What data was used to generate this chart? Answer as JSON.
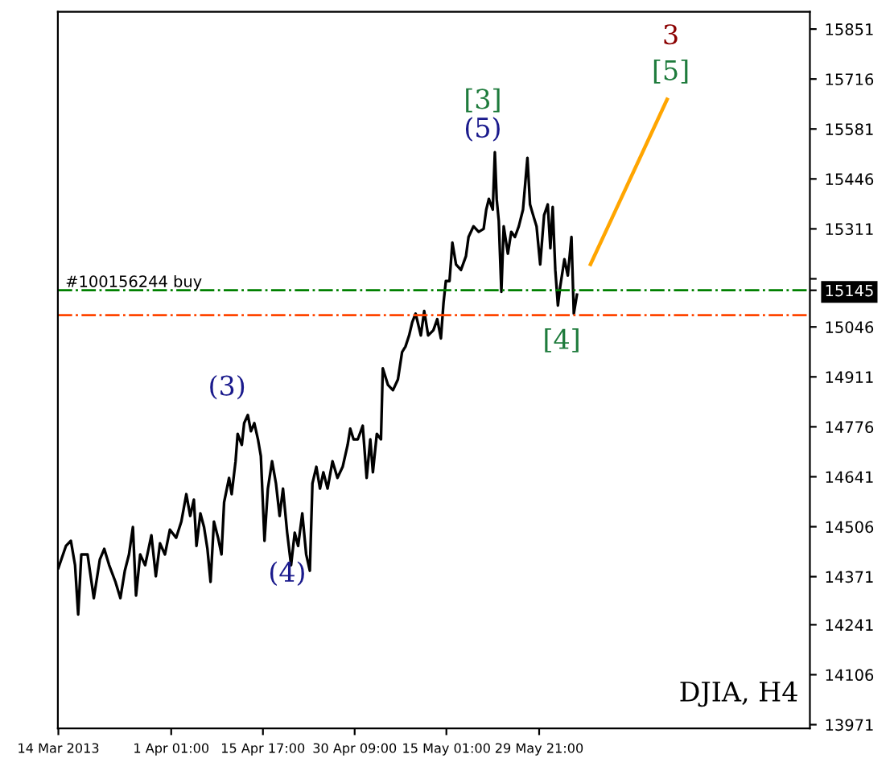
{
  "chart_data": {
    "type": "line",
    "title": "DJIA, H4",
    "xlim": [
      "2013-03-13T22:00",
      "2013-07-12T04:00"
    ],
    "ylim": [
      13961,
      15898
    ],
    "xticks": [
      {
        "value": "2013-03-14T00:00",
        "label": "14 Mar 2013"
      },
      {
        "value": "2013-04-01T01:00",
        "label": "1 Apr 01:00"
      },
      {
        "value": "2013-04-15T17:00",
        "label": "15 Apr 17:00"
      },
      {
        "value": "2013-04-30T09:00",
        "label": "30 Apr 09:00"
      },
      {
        "value": "2013-05-15T01:00",
        "label": "15 May 01:00"
      },
      {
        "value": "2013-05-29T21:00",
        "label": "29 May 21:00"
      }
    ],
    "yticks": [
      13971,
      14106,
      14241,
      14371,
      14506,
      14641,
      14776,
      14911,
      15046,
      15145,
      {
        "value": 15176,
        "label": null
      },
      15311,
      15446,
      15581,
      15716,
      15851
    ],
    "grid": false,
    "legend": false,
    "series": [
      {
        "color": "#000000",
        "x": [
          "2013-03-14T00:00",
          "2013-03-15T05:00",
          "2013-03-16T00:00",
          "2013-03-16T16:00",
          "2013-03-17T04:00",
          "2013-03-17T16:00",
          "2013-03-18T16:00",
          "2013-03-19T16:00",
          "2013-03-20T15:00",
          "2013-03-21T08:00",
          "2013-03-22T03:00",
          "2013-03-23T03:00",
          "2013-03-23T22:00",
          "2013-03-24T15:00",
          "2013-03-25T07:00",
          "2013-03-25T22:00",
          "2013-03-26T10:00",
          "2013-03-27T02:00",
          "2013-03-27T21:00",
          "2013-03-28T21:00",
          "2013-03-29T14:00",
          "2013-03-30T06:00",
          "2013-03-31T01:00",
          "2013-03-31T20:00",
          "2013-04-01T20:00",
          "2013-04-02T16:00",
          "2013-04-03T11:00",
          "2013-04-04T02:00",
          "2013-04-04T16:00",
          "2013-04-05T02:00",
          "2013-04-05T17:00",
          "2013-04-06T07:00",
          "2013-04-06T20:00",
          "2013-04-07T08:00",
          "2013-04-07T21:00",
          "2013-04-08T13:00",
          "2013-04-09T02:00",
          "2013-04-09T12:00",
          "2013-04-10T07:00",
          "2013-04-10T17:00",
          "2013-04-11T08:00",
          "2013-04-11T16:00",
          "2013-04-12T08:00",
          "2013-04-12T17:00",
          "2013-04-13T07:00",
          "2013-04-13T19:00",
          "2013-04-14T08:00",
          "2013-04-14T22:00",
          "2013-04-15T09:00",
          "2013-04-15T23:00",
          "2013-04-16T12:00",
          "2013-04-17T04:00",
          "2013-04-17T19:00",
          "2013-04-18T09:00",
          "2013-04-18T22:00",
          "2013-04-19T14:00",
          "2013-04-20T05:00",
          "2013-04-20T19:00",
          "2013-04-21T08:00",
          "2013-04-22T00:00",
          "2013-04-22T15:00",
          "2013-04-23T05:00",
          "2013-04-23T15:00",
          "2013-04-24T06:00",
          "2013-04-24T20:00",
          "2013-04-25T09:00",
          "2013-04-26T01:00",
          "2013-04-26T20:00",
          "2013-04-27T15:00",
          "2013-04-28T11:00",
          "2013-04-29T06:00",
          "2013-04-29T16:00",
          "2013-04-30T05:00",
          "2013-04-30T21:00",
          "2013-05-01T16:00",
          "2013-05-02T07:00",
          "2013-05-02T21:00",
          "2013-05-03T07:00",
          "2013-05-03T22:00",
          "2013-05-04T14:00",
          "2013-05-04T21:00",
          "2013-05-05T17:00",
          "2013-05-06T12:00",
          "2013-05-07T07:00",
          "2013-05-07T23:00",
          "2013-05-08T12:00",
          "2013-05-09T02:00",
          "2013-05-09T14:00",
          "2013-05-10T03:00",
          "2013-05-10T23:00",
          "2013-05-11T12:00",
          "2013-05-12T03:00",
          "2013-05-12T23:00",
          "2013-05-13T14:00",
          "2013-05-14T04:00",
          "2013-05-14T14:00",
          "2013-05-14T23:00",
          "2013-05-15T13:00",
          "2013-05-16T00:00",
          "2013-05-16T14:00",
          "2013-05-17T09:00",
          "2013-05-18T04:00",
          "2013-05-18T14:00",
          "2013-05-19T09:00",
          "2013-05-20T05:00",
          "2013-05-21T00:00",
          "2013-05-21T10:00",
          "2013-05-21T20:00",
          "2013-05-22T11:00",
          "2013-05-22T19:00",
          "2013-05-23T02:00",
          "2013-05-23T10:00",
          "2013-05-23T20:00",
          "2013-05-24T05:00",
          "2013-05-24T21:00",
          "2013-05-25T10:00",
          "2013-05-26T00:00",
          "2013-05-26T15:00",
          "2013-05-27T07:00",
          "2013-05-28T00:00",
          "2013-05-28T10:00",
          "2013-05-28T22:00",
          "2013-05-29T11:00",
          "2013-05-30T01:00",
          "2013-05-30T16:00",
          "2013-05-31T06:00",
          "2013-05-31T16:00",
          "2013-06-01T01:00",
          "2013-06-01T11:00",
          "2013-06-01T21:00",
          "2013-06-02T06:00",
          "2013-06-02T22:00",
          "2013-06-03T11:00",
          "2013-06-04T01:00",
          "2013-06-04T10:00",
          "2013-06-04T22:00"
        ],
        "values": [
          14394,
          14454,
          14468,
          14402,
          14269,
          14431,
          14431,
          14313,
          14417,
          14446,
          14402,
          14357,
          14313,
          14387,
          14431,
          14505,
          14320,
          14431,
          14402,
          14483,
          14372,
          14461,
          14431,
          14498,
          14476,
          14520,
          14594,
          14535,
          14579,
          14454,
          14542,
          14505,
          14446,
          14357,
          14520,
          14476,
          14431,
          14572,
          14638,
          14594,
          14683,
          14757,
          14727,
          14786,
          14808,
          14764,
          14786,
          14742,
          14697,
          14468,
          14609,
          14683,
          14623,
          14535,
          14609,
          14490,
          14402,
          14490,
          14454,
          14542,
          14431,
          14387,
          14623,
          14668,
          14609,
          14653,
          14609,
          14683,
          14638,
          14668,
          14727,
          14771,
          14742,
          14742,
          14779,
          14638,
          14742,
          14653,
          14757,
          14742,
          14934,
          14889,
          14875,
          14904,
          14978,
          14993,
          15023,
          15059,
          15082,
          15023,
          15089,
          15023,
          15037,
          15067,
          15015,
          15111,
          15170,
          15170,
          15274,
          15215,
          15200,
          15237,
          15289,
          15318,
          15303,
          15311,
          15363,
          15392,
          15363,
          15518,
          15392,
          15333,
          15141,
          15318,
          15244,
          15303,
          15289,
          15318,
          15363,
          15503,
          15377,
          15348,
          15318,
          15215,
          15348,
          15377,
          15259,
          15370,
          15200,
          15104,
          15156,
          15229,
          15185,
          15289,
          15082,
          15133
        ]
      },
      {
        "type": "line",
        "color": "#ffa500",
        "x": [
          "2013-06-07T02:00",
          "2013-06-19T08:00"
        ],
        "values": [
          15215,
          15661
        ]
      }
    ],
    "ref_lines": [
      {
        "axis": "y",
        "value": 15145,
        "label": "#100156244 buy",
        "color": "#008000",
        "line_style": "dashdot"
      },
      {
        "axis": "y",
        "value": 15078,
        "color": "#ff4500",
        "line_style": "dashdot"
      }
    ],
    "annotations": [
      "(3)",
      "(4)",
      "(5)",
      "[3]",
      "[4]",
      "[5]",
      "3"
    ]
  }
}
